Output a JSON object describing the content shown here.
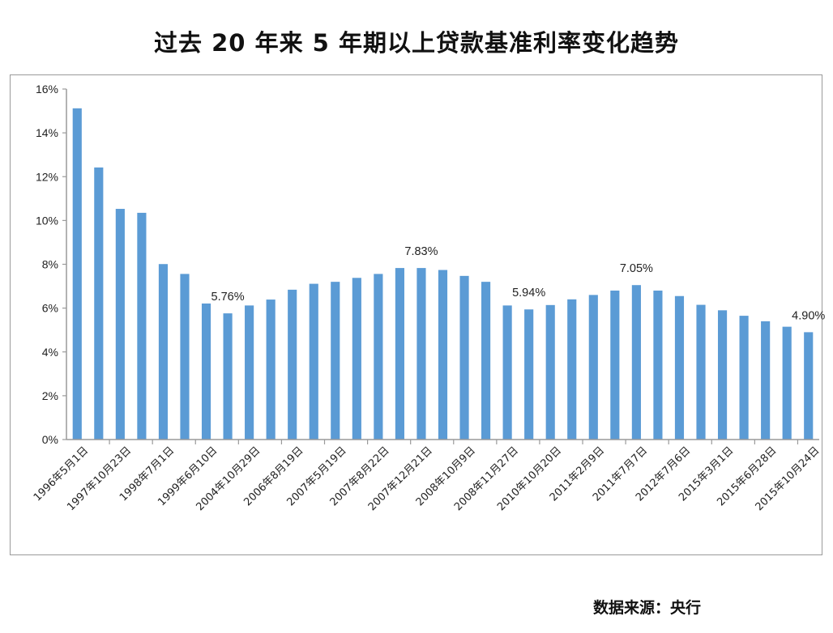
{
  "chart_data": {
    "type": "bar",
    "title": "过去 20 年来 5 年期以上贷款基准利率变化趋势",
    "source": "数据来源：央行",
    "color": "#5b9bd5",
    "ylim": [
      0,
      16
    ],
    "yticks": [
      "0%",
      "2%",
      "4%",
      "6%",
      "8%",
      "10%",
      "12%",
      "14%",
      "16%"
    ],
    "grid": false,
    "categories": [
      "1996年5月1日",
      "",
      "1997年10月23日",
      "",
      "1998年7月1日",
      "",
      "1999年6月10日",
      "",
      "2004年10月29日",
      "",
      "2006年8月19日",
      "",
      "2007年5月19日",
      "",
      "2007年8月22日",
      "",
      "2007年12月21日",
      "",
      "2008年10月9日",
      "",
      "2008年11月27日",
      "",
      "2010年10月20日",
      "",
      "2011年2月9日",
      "",
      "2011年7月7日",
      "",
      "2012年7月6日",
      "",
      "2015年3月1日",
      "",
      "2015年6月28日",
      "",
      "2015年10月24日"
    ],
    "values": [
      15.12,
      12.42,
      10.53,
      10.35,
      8.01,
      7.56,
      6.21,
      5.76,
      6.12,
      6.39,
      6.84,
      7.11,
      7.2,
      7.38,
      7.56,
      7.83,
      7.83,
      7.74,
      7.47,
      7.2,
      6.12,
      5.94,
      6.14,
      6.4,
      6.6,
      6.8,
      7.05,
      6.8,
      6.55,
      6.15,
      5.9,
      5.65,
      5.4,
      5.15,
      4.9
    ],
    "annotations": [
      {
        "index": 7,
        "label": "5.76%"
      },
      {
        "index": 16,
        "label": "7.83%"
      },
      {
        "index": 21,
        "label": "5.94%"
      },
      {
        "index": 26,
        "label": "7.05%"
      },
      {
        "index": 34,
        "label": "4.90%"
      }
    ]
  }
}
